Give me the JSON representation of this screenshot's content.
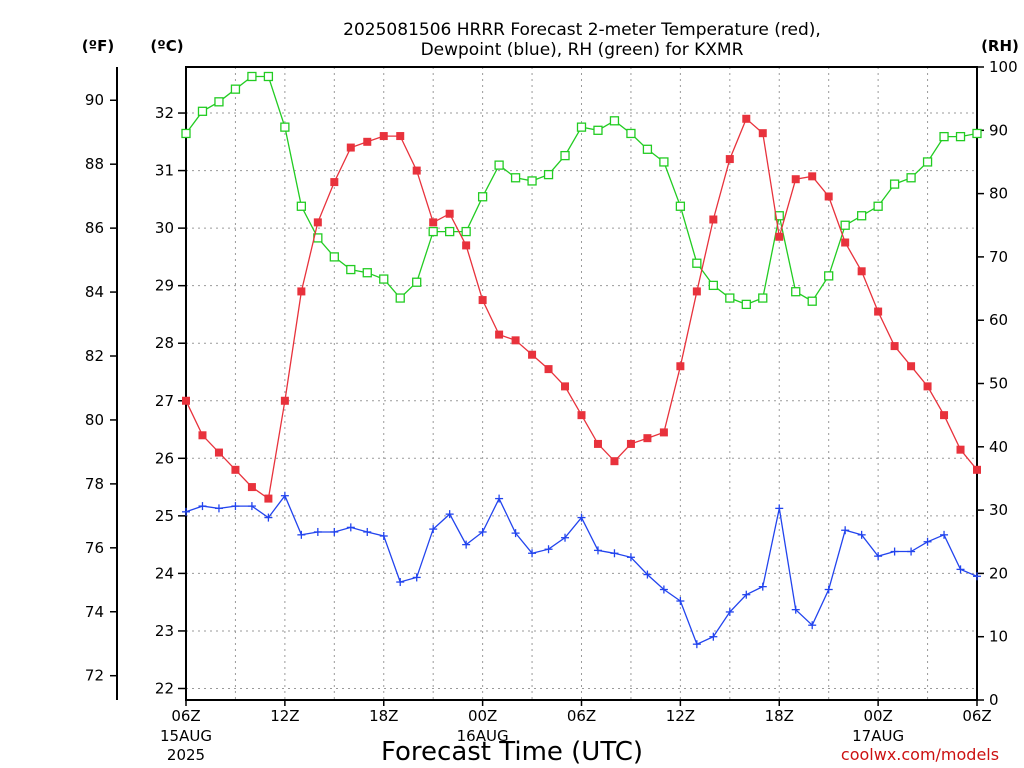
{
  "chart_data": {
    "type": "line",
    "title_line1": "2025081506 HRRR Forecast 2-meter Temperature (red),",
    "title_line2": "Dewpoint (blue), RH (green) for KXMR",
    "xlabel": "Forecast Time (UTC)",
    "credit": "coolwx.com/models",
    "units": {
      "left_f": "(ºF)",
      "left_c": "(ºC)",
      "right_rh": "(RH)"
    },
    "colors": {
      "temperature": "#e8323c",
      "dewpoint": "#2244ee",
      "rh": "#22cc22",
      "credit": "#cc1111"
    },
    "forecast_hours": [
      0,
      1,
      2,
      3,
      4,
      5,
      6,
      7,
      8,
      9,
      10,
      11,
      12,
      13,
      14,
      15,
      16,
      17,
      18,
      19,
      20,
      21,
      22,
      23,
      24,
      25,
      26,
      27,
      28,
      29,
      30,
      31,
      32,
      33,
      34,
      35,
      36,
      37,
      38,
      39,
      40,
      41,
      42,
      43,
      44,
      45,
      46,
      47,
      48
    ],
    "xlim_hours": [
      0,
      48
    ],
    "x_ticks": [
      {
        "hour": 0,
        "label": "06Z",
        "date1": "15AUG",
        "date2": "2025"
      },
      {
        "hour": 6,
        "label": "12Z"
      },
      {
        "hour": 12,
        "label": "18Z"
      },
      {
        "hour": 18,
        "label": "00Z",
        "date1": "16AUG"
      },
      {
        "hour": 24,
        "label": "06Z"
      },
      {
        "hour": 30,
        "label": "12Z"
      },
      {
        "hour": 36,
        "label": "18Z"
      },
      {
        "hour": 42,
        "label": "00Z",
        "date1": "17AUG"
      },
      {
        "hour": 48,
        "label": "06Z"
      }
    ],
    "y_celsius": {
      "range": [
        21.8,
        32.8
      ],
      "ticks": [
        22,
        23,
        24,
        25,
        26,
        27,
        28,
        29,
        30,
        31,
        32
      ]
    },
    "y_fahrenheit": {
      "ticks": [
        72,
        74,
        76,
        78,
        80,
        82,
        84,
        86,
        88,
        90
      ]
    },
    "y_rh": {
      "range": [
        0,
        100
      ],
      "ticks": [
        0,
        10,
        20,
        30,
        40,
        50,
        60,
        70,
        80,
        90,
        100
      ]
    },
    "series": [
      {
        "name": "Temperature",
        "unit": "C",
        "values": [
          27.0,
          26.4,
          26.1,
          25.8,
          25.5,
          25.3,
          27.0,
          28.9,
          30.1,
          30.8,
          31.4,
          31.5,
          31.6,
          31.6,
          31.0,
          30.1,
          30.25,
          29.7,
          28.75,
          28.15,
          28.05,
          27.8,
          27.55,
          27.25,
          26.75,
          26.25,
          25.95,
          26.25,
          26.35,
          26.45,
          27.6,
          28.9,
          30.15,
          31.2,
          31.9,
          31.65,
          29.85,
          30.85,
          30.9,
          30.55,
          29.75,
          29.25,
          28.55,
          27.95,
          27.6,
          27.25,
          26.75,
          26.15,
          25.8
        ]
      },
      {
        "name": "Dewpoint",
        "unit": "C",
        "values": [
          25.07,
          25.17,
          25.13,
          25.17,
          25.17,
          24.97,
          25.35,
          24.67,
          24.72,
          24.72,
          24.8,
          24.72,
          24.65,
          23.85,
          23.93,
          24.77,
          25.03,
          24.5,
          24.72,
          25.3,
          24.7,
          24.35,
          24.42,
          24.62,
          24.97,
          24.4,
          24.35,
          24.28,
          23.98,
          23.72,
          23.52,
          22.77,
          22.9,
          23.33,
          23.63,
          23.77,
          25.13,
          23.37,
          23.1,
          23.72,
          24.75,
          24.67,
          24.3,
          24.38,
          24.38,
          24.55,
          24.67,
          24.07,
          23.95
        ]
      },
      {
        "name": "RH",
        "unit": "%",
        "values": [
          89.5,
          93.0,
          94.5,
          96.5,
          98.5,
          98.5,
          90.5,
          78.0,
          73.0,
          70.0,
          68.0,
          67.5,
          66.5,
          63.5,
          66.0,
          74.0,
          74.0,
          74.0,
          79.5,
          84.5,
          82.5,
          82.0,
          83.0,
          86.0,
          90.5,
          90.0,
          91.5,
          89.5,
          87.0,
          85.0,
          78.0,
          69.0,
          65.5,
          63.5,
          62.5,
          63.5,
          76.5,
          64.5,
          63.0,
          67.0,
          75.0,
          76.5,
          78.0,
          81.5,
          82.5,
          85.0,
          89.0,
          89.0,
          89.5
        ]
      }
    ]
  }
}
